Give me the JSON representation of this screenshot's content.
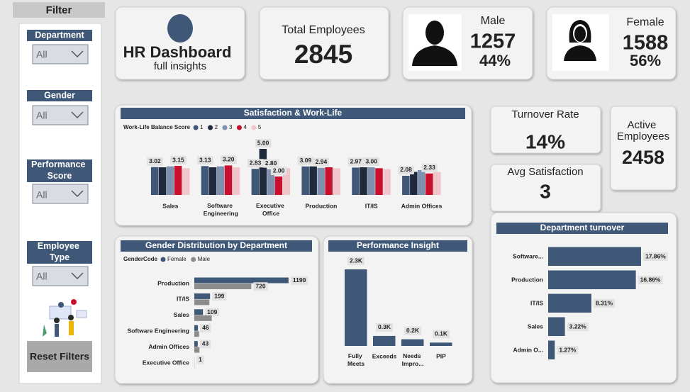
{
  "filter_panel": {
    "title": "Filter",
    "slicers": [
      {
        "label": "Department",
        "value": "All"
      },
      {
        "label": "Gender",
        "value": "All"
      },
      {
        "label": "Performance Score",
        "value": "All"
      },
      {
        "label": "Employee Type",
        "value": "All"
      }
    ],
    "reset_button": "Reset Filters"
  },
  "header": {
    "title": "HR Dashboard",
    "subtitle": "full insights"
  },
  "kpis": {
    "total_employees": {
      "label": "Total Employees",
      "value": 2845
    },
    "male": {
      "label": "Male",
      "value": 1257,
      "share": "44%"
    },
    "female": {
      "label": "Female",
      "value": 1588,
      "share": "56%"
    },
    "turnover_rate": {
      "label": "Turnover Rate",
      "value": "14%"
    },
    "avg_satisfaction": {
      "label": "Avg Satisfaction",
      "value": 3
    },
    "active_employees": {
      "label": "Active Employees",
      "value": 2458
    }
  },
  "chart_data": [
    {
      "type": "bar",
      "title": "Satisfaction & Work-Life",
      "legend_title": "Work-Life Balance Score",
      "categories": [
        "Sales",
        "Software Engineering",
        "Executive Office",
        "Production",
        "IT/IS",
        "Admin Offices"
      ],
      "ylim": [
        0,
        5
      ],
      "series": [
        {
          "name": "1",
          "color": "#3f5878",
          "values": [
            3.02,
            3.13,
            2.83,
            3.09,
            2.97,
            2.08
          ],
          "value_labels": [
            "3.02",
            "3.13",
            "2.83",
            "3.09",
            "2.97",
            "2.08"
          ]
        },
        {
          "name": "2",
          "color": "#1f2a3c",
          "values": [
            3.0,
            3.0,
            5.0,
            3.1,
            3.0,
            2.5
          ],
          "value_labels": [
            null,
            null,
            "5.00",
            null,
            null,
            null
          ]
        },
        {
          "name": "3",
          "color": "#7d90ad",
          "values": [
            3.1,
            3.1,
            2.8,
            2.94,
            3.0,
            2.7
          ],
          "value_labels": [
            null,
            null,
            "2.80",
            "2.94",
            "3.00",
            null
          ]
        },
        {
          "name": "4",
          "color": "#c8102e",
          "values": [
            3.15,
            3.2,
            2.0,
            3.0,
            2.9,
            2.33
          ],
          "value_labels": [
            "3.15",
            "3.20",
            "2.00",
            null,
            null,
            "2.33"
          ]
        },
        {
          "name": "5",
          "color": "#f0c6cb",
          "values": [
            2.9,
            3.0,
            2.9,
            2.9,
            2.8,
            2.5
          ],
          "value_labels": [
            null,
            null,
            null,
            null,
            null,
            null
          ]
        }
      ]
    },
    {
      "type": "hbar",
      "title": "Gender Distribution by Department",
      "legend_title": "GenderCode",
      "categories": [
        "Production",
        "IT/IS",
        "Sales",
        "Software Engineering",
        "Admin Offices",
        "Executive Office"
      ],
      "xlim": [
        0,
        1200
      ],
      "series": [
        {
          "name": "Female",
          "color": "#3f5878",
          "values": [
            1190,
            199,
            109,
            46,
            43,
            1
          ],
          "value_labels": [
            "1190",
            "199",
            "109",
            "46",
            "43",
            "1"
          ]
        },
        {
          "name": "Male",
          "color": "#8c8c8c",
          "values": [
            720,
            190,
            220,
            60,
            65,
            2
          ],
          "value_labels": [
            "720",
            null,
            null,
            null,
            null,
            null
          ]
        }
      ]
    },
    {
      "type": "bar",
      "title": "Performance Insight",
      "categories": [
        "Fully Meets",
        "Exceeds",
        "Needs Impro...",
        "PIP"
      ],
      "values": [
        2300,
        300,
        200,
        100
      ],
      "value_labels": [
        "2.3K",
        "0.3K",
        "0.2K",
        "0.1K"
      ],
      "color": "#3f5878",
      "ylim": [
        0,
        2300
      ]
    },
    {
      "type": "hbar",
      "title": "Department turnover",
      "categories": [
        "Software...",
        "Production",
        "IT/IS",
        "Sales",
        "Admin O..."
      ],
      "values": [
        17.86,
        16.86,
        8.31,
        3.22,
        1.27
      ],
      "value_labels": [
        "17.86%",
        "16.86%",
        "8.31%",
        "3.22%",
        "1.27%"
      ],
      "color": "#3f5878",
      "xlim": [
        0,
        18
      ]
    }
  ]
}
